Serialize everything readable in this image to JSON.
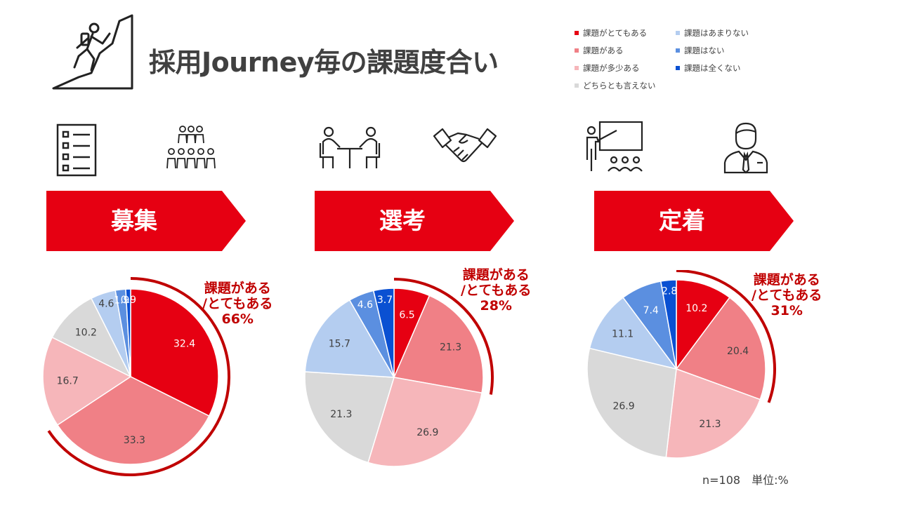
{
  "title": "採用Journey毎の課題度合い",
  "legend": [
    {
      "label": "課題がとてもある",
      "color": "#e60012"
    },
    {
      "label": "課題がある",
      "color": "#f08086"
    },
    {
      "label": "課題が多少ある",
      "color": "#f6b6ba"
    },
    {
      "label": "どちらとも言えない",
      "color": "#d9d9d9"
    },
    {
      "label": "課題はあまりない",
      "color": "#b4cdf0"
    },
    {
      "label": "課題はない",
      "color": "#5b8fe0"
    },
    {
      "label": "課題は全くない",
      "color": "#0a50d2"
    }
  ],
  "stages": [
    {
      "label": "募集",
      "icons": [
        "checklist-icon",
        "crowd-icon"
      ]
    },
    {
      "label": "選考",
      "icons": [
        "interview-icon",
        "handshake-icon"
      ]
    },
    {
      "label": "定着",
      "icons": [
        "training-icon",
        "employee-icon"
      ]
    }
  ],
  "callouts": [
    {
      "line1": "課題がある",
      "line2": "/とてもある",
      "line3": "66%"
    },
    {
      "line1": "課題がある",
      "line2": "/とてもある",
      "line3": "28%"
    },
    {
      "line1": "課題がある",
      "line2": "/とてもある",
      "line3": "31%"
    }
  ],
  "footnote": "n=108　単位:%",
  "chart_data": [
    {
      "type": "pie",
      "title": "募集",
      "categories": [
        "課題がとてもある",
        "課題がある",
        "課題が多少ある",
        "どちらとも言えない",
        "課題はあまりない",
        "課題はない",
        "課題は全くない"
      ],
      "values": [
        32.4,
        33.3,
        16.7,
        10.2,
        4.6,
        1.9,
        0.9
      ]
    },
    {
      "type": "pie",
      "title": "選考",
      "categories": [
        "課題がとてもある",
        "課題がある",
        "課題が多少ある",
        "どちらとも言えない",
        "課題はあまりない",
        "課題はない",
        "課題は全くない"
      ],
      "values": [
        6.5,
        21.3,
        26.9,
        21.3,
        15.7,
        4.6,
        3.7
      ]
    },
    {
      "type": "pie",
      "title": "定着",
      "categories": [
        "課題がとてもある",
        "課題がある",
        "課題が多少ある",
        "どちらとも言えない",
        "課題はあまりない",
        "課題はない",
        "課題は全くない"
      ],
      "values": [
        10.2,
        20.4,
        21.3,
        26.9,
        11.1,
        7.4,
        2.8
      ]
    }
  ]
}
